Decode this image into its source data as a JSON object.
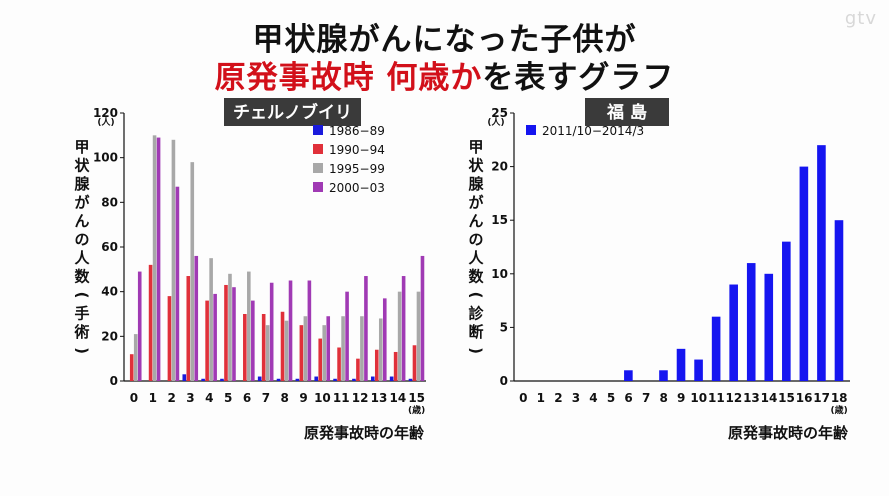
{
  "watermark": "gtv",
  "title": {
    "line1": "甲状腺がんになった子供が",
    "line2_red": "原発事故時 何歳か",
    "line2_rest": "を表すグラフ"
  },
  "colors": {
    "blue": "#1a1adc",
    "red": "#e0303a",
    "gray": "#a8a8a8",
    "purple": "#a03ab4",
    "fukushima": "#1515f0"
  },
  "chart_data": [
    {
      "type": "bar",
      "title": "チェルノブイリ",
      "ylabel": "甲状腺がんの人数(手術)",
      "yunit": "(人)",
      "xlabel": "原発事故時の年齢",
      "xunit": "(歳)",
      "ylim": [
        0,
        120
      ],
      "yticks": [
        0,
        20,
        40,
        60,
        80,
        100,
        120
      ],
      "categories": [
        "0",
        "1",
        "2",
        "3",
        "4",
        "5",
        "6",
        "7",
        "8",
        "9",
        "10",
        "11",
        "12",
        "13",
        "14",
        "15"
      ],
      "legend_position": "top-right",
      "series": [
        {
          "name": "1986−89",
          "color": "#1a1adc",
          "values": [
            0,
            0,
            0,
            3,
            1,
            1,
            0,
            2,
            1,
            1,
            2,
            1,
            1,
            2,
            2,
            1
          ]
        },
        {
          "name": "1990−94",
          "color": "#e0303a",
          "values": [
            12,
            52,
            38,
            47,
            36,
            43,
            30,
            30,
            31,
            25,
            19,
            15,
            10,
            14,
            13,
            16
          ]
        },
        {
          "name": "1995−99",
          "color": "#a8a8a8",
          "values": [
            21,
            110,
            108,
            98,
            55,
            48,
            49,
            25,
            27,
            29,
            25,
            29,
            29,
            28,
            40,
            40
          ]
        },
        {
          "name": "2000−03",
          "color": "#a03ab4",
          "values": [
            49,
            109,
            87,
            56,
            39,
            42,
            36,
            44,
            45,
            45,
            29,
            40,
            47,
            37,
            47,
            56
          ]
        }
      ]
    },
    {
      "type": "bar",
      "title": "福 島",
      "ylabel": "甲状腺がんの人数(診断)",
      "yunit": "(人)",
      "xlabel": "原発事故時の年齢",
      "xunit": "(歳)",
      "ylim": [
        0,
        25
      ],
      "yticks": [
        0,
        5,
        10,
        15,
        20,
        25
      ],
      "categories": [
        "0",
        "1",
        "2",
        "3",
        "4",
        "5",
        "6",
        "7",
        "8",
        "9",
        "10",
        "11",
        "12",
        "13",
        "14",
        "15",
        "16",
        "17",
        "18"
      ],
      "legend_position": "top-left",
      "series": [
        {
          "name": "2011/10−2014/3",
          "color": "#1515f0",
          "values": [
            0,
            0,
            0,
            0,
            0,
            0,
            1,
            0,
            1,
            3,
            2,
            6,
            9,
            11,
            10,
            13,
            20,
            22,
            15
          ]
        }
      ]
    }
  ]
}
